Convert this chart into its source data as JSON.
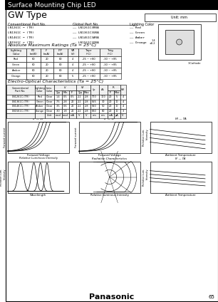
{
  "title_bar": "Surface Mounting Chip LED",
  "title_bar_bg": "#000000",
  "title_bar_color": "#ffffff",
  "type_label": "GW Type",
  "unit_label": "Unit: mm",
  "part_numbers": [
    [
      "LN1261C − (TR)",
      "LN1261C3RRA",
      "Red"
    ],
    [
      "LN1361C − (TR)",
      "LN1361C3GRA",
      "Green"
    ],
    [
      "LN1461C − (TR)",
      "LN1461C3ARA",
      "Amber"
    ],
    [
      "LN1561C − (TR)",
      "LN1561C3ORA",
      "Orange"
    ]
  ],
  "abs_max_title": "Absolute Maximum Ratings (Ta = 25°C)",
  "abs_max_data": [
    [
      "Red",
      60,
      20,
      80,
      4,
      "-25 ~ +80",
      "-30 ~ +85"
    ],
    [
      "Green",
      60,
      20,
      80,
      4,
      "-25 ~ +80",
      "-30 ~ +85"
    ],
    [
      "Amber",
      60,
      20,
      80,
      4,
      "-25 ~ +80",
      "-30 ~ +85"
    ],
    [
      "Orange",
      60,
      20,
      80,
      5,
      "-25 ~ +80",
      "-30 ~ +85"
    ]
  ],
  "eo_title": "Electro-Optical Characteristics (Ta = 25°C)",
  "eo_data": [
    [
      "LN1261C-(TR)",
      "Red",
      "Clear",
      "1.4",
      "0.5",
      "0.5",
      "2.2",
      "2.8",
      "700",
      "100",
      "20",
      "5",
      "4"
    ],
    [
      "LN1361C-(TR)",
      "Green",
      "Clear",
      "7.5",
      "2.8",
      "20",
      "2.2",
      "2.8",
      "565",
      "30",
      "20",
      "10",
      "4"
    ],
    [
      "LN1461C-(TR)",
      "Amber",
      "Clear",
      "3.5",
      "0.6",
      "20",
      "2.2",
      "2.8",
      "590",
      "50",
      "20",
      "10",
      "4"
    ],
    [
      "LN1561C-(TR)",
      "Orange",
      "Clear",
      "3.0",
      "1.8",
      "20",
      "2.2",
      "2.8",
      "630",
      "80",
      "20",
      "10",
      "3"
    ]
  ],
  "units_row": [
    "",
    "",
    "Unit",
    "mcd",
    "mcd",
    "mA",
    "V",
    "V",
    "nm",
    "nm",
    "mA",
    "μA",
    "V"
  ],
  "footer": "Panasonic",
  "page": "65",
  "bg_color": "#ffffff"
}
